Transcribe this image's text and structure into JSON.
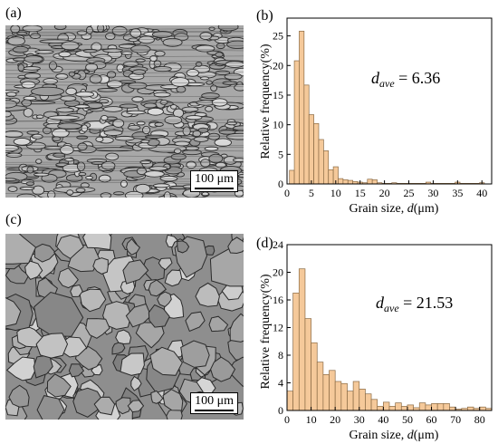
{
  "panels": {
    "a_label": "(a)",
    "b_label": "(b)",
    "c_label": "(c)",
    "d_label": "(d)",
    "scalebar_a": "100 μm",
    "scalebar_c": "100 μm"
  },
  "colors": {
    "bar_fill": "#f5c99a",
    "bar_stroke": "#8a6a44",
    "micro_dark": "#3a3a3a",
    "micro_light": "#c8c8c8"
  },
  "chart_data": [
    {
      "type": "bar",
      "panel": "(b)",
      "annotation": {
        "symbol": "d",
        "subscript": "ave",
        "text": " = 6.36"
      },
      "xlabel_main": "Grain size, ",
      "xlabel_symbol": "d",
      "xlabel_unit": "(μm)",
      "ylabel": "Relative frequency(%)",
      "xlim": [
        0,
        42
      ],
      "ylim": [
        0,
        28
      ],
      "xticks": [
        0,
        5,
        10,
        15,
        20,
        25,
        30,
        35,
        40
      ],
      "yticks": [
        0,
        5,
        10,
        15,
        20,
        25
      ],
      "bin_width": 1,
      "x": [
        1,
        2,
        3,
        4,
        5,
        6,
        7,
        8,
        9,
        10,
        11,
        12,
        13,
        14,
        15,
        16,
        17,
        18,
        19,
        20,
        21,
        22,
        23,
        24,
        25,
        26,
        27,
        28,
        29,
        30,
        31,
        32,
        33,
        34,
        35,
        36,
        37,
        38,
        39,
        40
      ],
      "values": [
        2.3,
        20.8,
        25.8,
        16.7,
        11.7,
        10.2,
        7.5,
        5.6,
        2.4,
        2.9,
        0.9,
        0.7,
        0.6,
        0.4,
        0.3,
        0.2,
        0.8,
        0.7,
        0.2,
        0.1,
        0.1,
        0.2,
        0.1,
        0.1,
        0.1,
        0.1,
        0.1,
        0.1,
        0.3,
        0.1,
        0.1,
        0.1,
        0.1,
        0.1,
        0.3,
        0.1,
        0.1,
        0.1,
        0.1,
        0.2
      ]
    },
    {
      "type": "bar",
      "panel": "(d)",
      "annotation": {
        "symbol": "d",
        "subscript": "ave",
        "text": " = 21.53"
      },
      "xlabel_main": "Grain size, ",
      "xlabel_symbol": "d",
      "xlabel_unit": "(μm)",
      "ylabel": "Relative frequency(%)",
      "xlim": [
        0,
        85
      ],
      "ylim": [
        0,
        24
      ],
      "xticks": [
        0,
        10,
        20,
        30,
        40,
        50,
        60,
        70,
        80
      ],
      "yticks": [
        0,
        4,
        8,
        12,
        16,
        20,
        24
      ],
      "bin_width": 2.5,
      "x": [
        1.25,
        3.75,
        6.25,
        8.75,
        11.25,
        13.75,
        16.25,
        18.75,
        21.25,
        23.75,
        26.25,
        28.75,
        31.25,
        33.75,
        36.25,
        38.75,
        41.25,
        43.75,
        46.25,
        48.75,
        51.25,
        53.75,
        56.25,
        58.75,
        61.25,
        63.75,
        66.25,
        68.75,
        71.25,
        73.75,
        76.25,
        78.75,
        81.25,
        83.75
      ],
      "values": [
        2.8,
        17.0,
        20.5,
        13.3,
        9.8,
        7.0,
        5.2,
        5.8,
        4.2,
        3.9,
        2.8,
        4.2,
        3.1,
        2.4,
        1.6,
        0.6,
        1.2,
        0.6,
        1.1,
        0.6,
        0.8,
        0.4,
        1.1,
        0.8,
        1.0,
        1.0,
        1.0,
        0.5,
        0.2,
        0.3,
        0.5,
        0.3,
        0.5,
        0.3
      ]
    }
  ]
}
